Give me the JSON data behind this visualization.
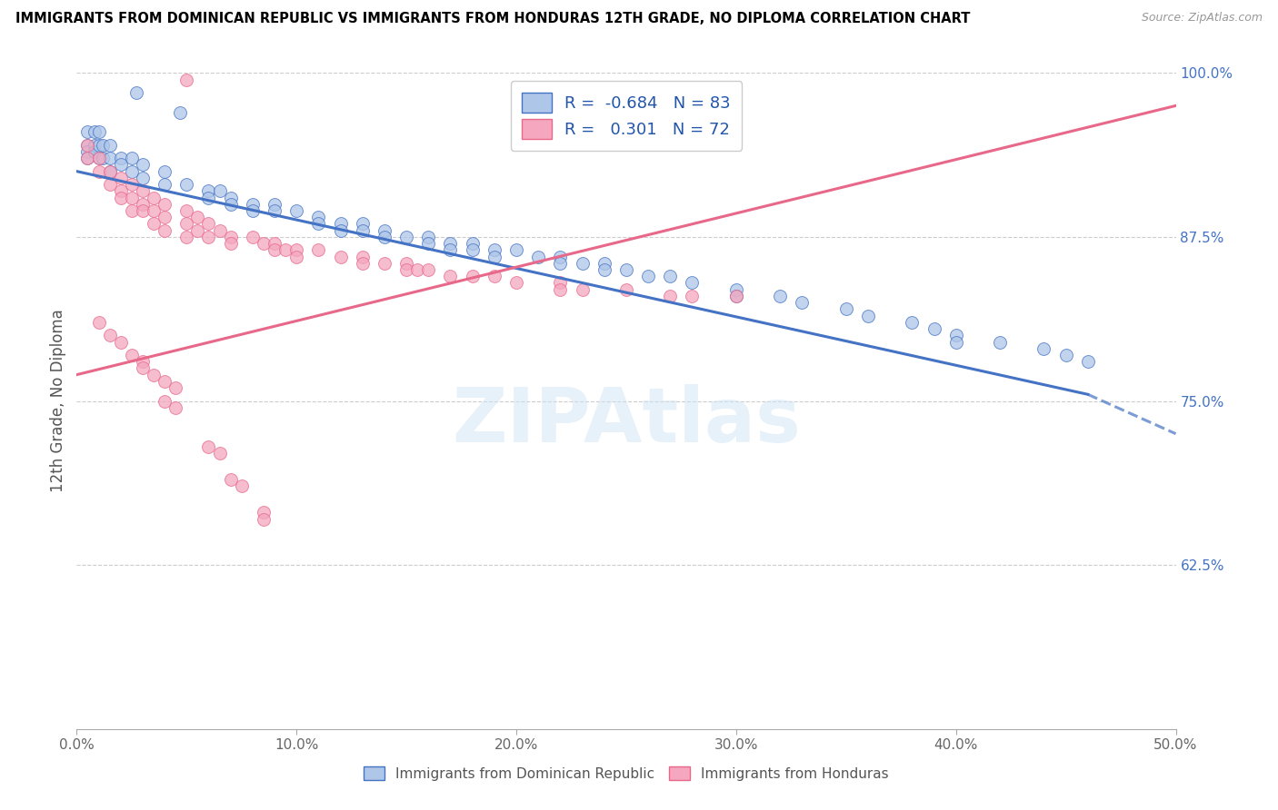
{
  "title": "IMMIGRANTS FROM DOMINICAN REPUBLIC VS IMMIGRANTS FROM HONDURAS 12TH GRADE, NO DIPLOMA CORRELATION CHART",
  "source": "Source: ZipAtlas.com",
  "xlabel_blue": "Immigrants from Dominican Republic",
  "xlabel_pink": "Immigrants from Honduras",
  "ylabel": "12th Grade, No Diploma",
  "xlim": [
    0.0,
    0.5
  ],
  "ylim": [
    0.5,
    1.0
  ],
  "yticks": [
    0.625,
    0.75,
    0.875,
    1.0
  ],
  "ytick_labels": [
    "62.5%",
    "75.0%",
    "87.5%",
    "100.0%"
  ],
  "xticks": [
    0.0,
    0.1,
    0.2,
    0.3,
    0.4,
    0.5
  ],
  "xtick_labels": [
    "0.0%",
    "10.0%",
    "20.0%",
    "30.0%",
    "40.0%",
    "50.0%"
  ],
  "r_blue": -0.684,
  "n_blue": 83,
  "r_pink": 0.301,
  "n_pink": 72,
  "blue_color": "#aec6e8",
  "pink_color": "#f4a7bf",
  "blue_line_color": "#4472c4",
  "pink_line_color": "#e8688a",
  "watermark": "ZIPAtlas",
  "blue_scatter": [
    [
      0.005,
      0.955
    ],
    [
      0.005,
      0.945
    ],
    [
      0.005,
      0.94
    ],
    [
      0.005,
      0.935
    ],
    [
      0.008,
      0.955
    ],
    [
      0.008,
      0.945
    ],
    [
      0.008,
      0.94
    ],
    [
      0.01,
      0.955
    ],
    [
      0.01,
      0.945
    ],
    [
      0.01,
      0.935
    ],
    [
      0.012,
      0.945
    ],
    [
      0.012,
      0.935
    ],
    [
      0.015,
      0.945
    ],
    [
      0.015,
      0.935
    ],
    [
      0.015,
      0.925
    ],
    [
      0.02,
      0.935
    ],
    [
      0.02,
      0.93
    ],
    [
      0.025,
      0.935
    ],
    [
      0.025,
      0.925
    ],
    [
      0.03,
      0.93
    ],
    [
      0.03,
      0.92
    ],
    [
      0.04,
      0.925
    ],
    [
      0.04,
      0.915
    ],
    [
      0.05,
      0.915
    ],
    [
      0.06,
      0.91
    ],
    [
      0.06,
      0.905
    ],
    [
      0.065,
      0.91
    ],
    [
      0.07,
      0.905
    ],
    [
      0.07,
      0.9
    ],
    [
      0.08,
      0.9
    ],
    [
      0.08,
      0.895
    ],
    [
      0.09,
      0.9
    ],
    [
      0.09,
      0.895
    ],
    [
      0.1,
      0.895
    ],
    [
      0.11,
      0.89
    ],
    [
      0.11,
      0.885
    ],
    [
      0.12,
      0.885
    ],
    [
      0.12,
      0.88
    ],
    [
      0.13,
      0.885
    ],
    [
      0.13,
      0.88
    ],
    [
      0.14,
      0.88
    ],
    [
      0.14,
      0.875
    ],
    [
      0.15,
      0.875
    ],
    [
      0.16,
      0.875
    ],
    [
      0.16,
      0.87
    ],
    [
      0.17,
      0.87
    ],
    [
      0.17,
      0.865
    ],
    [
      0.18,
      0.87
    ],
    [
      0.18,
      0.865
    ],
    [
      0.19,
      0.865
    ],
    [
      0.19,
      0.86
    ],
    [
      0.2,
      0.865
    ],
    [
      0.21,
      0.86
    ],
    [
      0.22,
      0.86
    ],
    [
      0.22,
      0.855
    ],
    [
      0.23,
      0.855
    ],
    [
      0.24,
      0.855
    ],
    [
      0.24,
      0.85
    ],
    [
      0.25,
      0.85
    ],
    [
      0.26,
      0.845
    ],
    [
      0.27,
      0.845
    ],
    [
      0.28,
      0.84
    ],
    [
      0.3,
      0.835
    ],
    [
      0.3,
      0.83
    ],
    [
      0.32,
      0.83
    ],
    [
      0.33,
      0.825
    ],
    [
      0.35,
      0.82
    ],
    [
      0.36,
      0.815
    ],
    [
      0.38,
      0.81
    ],
    [
      0.39,
      0.805
    ],
    [
      0.4,
      0.8
    ],
    [
      0.4,
      0.795
    ],
    [
      0.42,
      0.795
    ],
    [
      0.44,
      0.79
    ],
    [
      0.45,
      0.785
    ],
    [
      0.46,
      0.78
    ],
    [
      0.047,
      0.97
    ],
    [
      0.027,
      0.985
    ]
  ],
  "pink_scatter": [
    [
      0.005,
      0.945
    ],
    [
      0.005,
      0.935
    ],
    [
      0.01,
      0.935
    ],
    [
      0.01,
      0.925
    ],
    [
      0.015,
      0.925
    ],
    [
      0.015,
      0.915
    ],
    [
      0.02,
      0.92
    ],
    [
      0.02,
      0.91
    ],
    [
      0.02,
      0.905
    ],
    [
      0.025,
      0.915
    ],
    [
      0.025,
      0.905
    ],
    [
      0.025,
      0.895
    ],
    [
      0.03,
      0.91
    ],
    [
      0.03,
      0.9
    ],
    [
      0.03,
      0.895
    ],
    [
      0.035,
      0.905
    ],
    [
      0.035,
      0.895
    ],
    [
      0.035,
      0.885
    ],
    [
      0.04,
      0.9
    ],
    [
      0.04,
      0.89
    ],
    [
      0.04,
      0.88
    ],
    [
      0.05,
      0.895
    ],
    [
      0.05,
      0.885
    ],
    [
      0.05,
      0.875
    ],
    [
      0.055,
      0.89
    ],
    [
      0.055,
      0.88
    ],
    [
      0.06,
      0.885
    ],
    [
      0.06,
      0.875
    ],
    [
      0.065,
      0.88
    ],
    [
      0.07,
      0.875
    ],
    [
      0.07,
      0.87
    ],
    [
      0.08,
      0.875
    ],
    [
      0.085,
      0.87
    ],
    [
      0.09,
      0.87
    ],
    [
      0.09,
      0.865
    ],
    [
      0.095,
      0.865
    ],
    [
      0.1,
      0.865
    ],
    [
      0.1,
      0.86
    ],
    [
      0.11,
      0.865
    ],
    [
      0.12,
      0.86
    ],
    [
      0.13,
      0.86
    ],
    [
      0.13,
      0.855
    ],
    [
      0.14,
      0.855
    ],
    [
      0.15,
      0.855
    ],
    [
      0.15,
      0.85
    ],
    [
      0.155,
      0.85
    ],
    [
      0.16,
      0.85
    ],
    [
      0.17,
      0.845
    ],
    [
      0.18,
      0.845
    ],
    [
      0.19,
      0.845
    ],
    [
      0.2,
      0.84
    ],
    [
      0.22,
      0.84
    ],
    [
      0.22,
      0.835
    ],
    [
      0.23,
      0.835
    ],
    [
      0.25,
      0.835
    ],
    [
      0.27,
      0.83
    ],
    [
      0.28,
      0.83
    ],
    [
      0.3,
      0.83
    ],
    [
      0.01,
      0.81
    ],
    [
      0.015,
      0.8
    ],
    [
      0.02,
      0.795
    ],
    [
      0.025,
      0.785
    ],
    [
      0.03,
      0.78
    ],
    [
      0.03,
      0.775
    ],
    [
      0.035,
      0.77
    ],
    [
      0.04,
      0.765
    ],
    [
      0.045,
      0.76
    ],
    [
      0.04,
      0.75
    ],
    [
      0.045,
      0.745
    ],
    [
      0.06,
      0.715
    ],
    [
      0.065,
      0.71
    ],
    [
      0.07,
      0.69
    ],
    [
      0.075,
      0.685
    ],
    [
      0.085,
      0.665
    ],
    [
      0.085,
      0.66
    ],
    [
      0.05,
      0.995
    ],
    [
      0.26,
      0.975
    ]
  ]
}
